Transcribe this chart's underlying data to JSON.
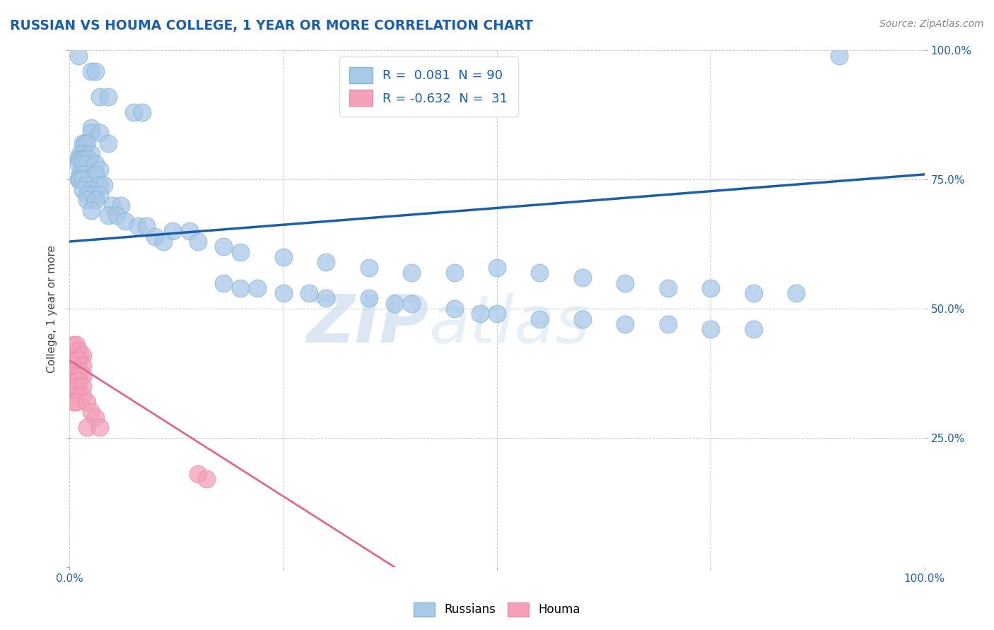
{
  "title": "RUSSIAN VS HOUMA COLLEGE, 1 YEAR OR MORE CORRELATION CHART",
  "source_text": "Source: ZipAtlas.com",
  "ylabel": "College, 1 year or more",
  "legend_labels": [
    "Russians",
    "Houma"
  ],
  "blue_R": 0.081,
  "blue_N": 90,
  "pink_R": -0.632,
  "pink_N": 31,
  "blue_color": "#a8c8e8",
  "blue_line_color": "#1a5fa8",
  "pink_color": "#f4a0b8",
  "pink_line_color": "#e06888",
  "watermark_zip": "ZIP",
  "watermark_atlas": "atlas",
  "background_color": "#ffffff",
  "grid_color": "#bbbbbb",
  "blue_dots": [
    [
      1.0,
      99
    ],
    [
      2.5,
      96
    ],
    [
      3.0,
      96
    ],
    [
      3.5,
      91
    ],
    [
      4.5,
      91
    ],
    [
      7.5,
      88
    ],
    [
      8.5,
      88
    ],
    [
      2.5,
      85
    ],
    [
      2.5,
      84
    ],
    [
      3.5,
      84
    ],
    [
      4.5,
      82
    ],
    [
      1.5,
      82
    ],
    [
      1.8,
      82
    ],
    [
      2.0,
      82
    ],
    [
      1.2,
      80
    ],
    [
      1.5,
      80
    ],
    [
      2.5,
      80
    ],
    [
      1.0,
      79
    ],
    [
      1.2,
      79
    ],
    [
      1.5,
      79
    ],
    [
      1.8,
      79
    ],
    [
      2.2,
      79
    ],
    [
      1.0,
      78
    ],
    [
      1.5,
      78
    ],
    [
      2.0,
      78
    ],
    [
      3.0,
      78
    ],
    [
      3.5,
      77
    ],
    [
      1.2,
      76
    ],
    [
      1.8,
      76
    ],
    [
      3.0,
      76
    ],
    [
      1.0,
      75
    ],
    [
      1.2,
      75
    ],
    [
      1.5,
      75
    ],
    [
      2.0,
      74
    ],
    [
      3.5,
      74
    ],
    [
      4.0,
      74
    ],
    [
      1.5,
      73
    ],
    [
      2.5,
      73
    ],
    [
      2.0,
      72
    ],
    [
      2.8,
      72
    ],
    [
      3.5,
      72
    ],
    [
      2.0,
      71
    ],
    [
      3.0,
      71
    ],
    [
      5.0,
      70
    ],
    [
      6.0,
      70
    ],
    [
      2.5,
      69
    ],
    [
      4.5,
      68
    ],
    [
      5.5,
      68
    ],
    [
      6.5,
      67
    ],
    [
      8.0,
      66
    ],
    [
      9.0,
      66
    ],
    [
      12.0,
      65
    ],
    [
      14.0,
      65
    ],
    [
      10.0,
      64
    ],
    [
      11.0,
      63
    ],
    [
      15.0,
      63
    ],
    [
      18.0,
      62
    ],
    [
      20.0,
      61
    ],
    [
      25.0,
      60
    ],
    [
      30.0,
      59
    ],
    [
      35.0,
      58
    ],
    [
      40.0,
      57
    ],
    [
      45.0,
      57
    ],
    [
      50.0,
      58
    ],
    [
      55.0,
      57
    ],
    [
      60.0,
      56
    ],
    [
      65.0,
      55
    ],
    [
      70.0,
      54
    ],
    [
      75.0,
      54
    ],
    [
      80.0,
      53
    ],
    [
      85.0,
      53
    ],
    [
      18.0,
      55
    ],
    [
      20.0,
      54
    ],
    [
      22.0,
      54
    ],
    [
      25.0,
      53
    ],
    [
      28.0,
      53
    ],
    [
      30.0,
      52
    ],
    [
      35.0,
      52
    ],
    [
      38.0,
      51
    ],
    [
      40.0,
      51
    ],
    [
      45.0,
      50
    ],
    [
      48.0,
      49
    ],
    [
      50.0,
      49
    ],
    [
      55.0,
      48
    ],
    [
      60.0,
      48
    ],
    [
      65.0,
      47
    ],
    [
      70.0,
      47
    ],
    [
      75.0,
      46
    ],
    [
      80.0,
      46
    ],
    [
      90.0,
      99
    ]
  ],
  "pink_dots": [
    [
      0.5,
      43
    ],
    [
      0.8,
      43
    ],
    [
      1.0,
      42
    ],
    [
      1.2,
      41
    ],
    [
      1.5,
      41
    ],
    [
      0.5,
      40
    ],
    [
      0.8,
      40
    ],
    [
      1.0,
      40
    ],
    [
      1.5,
      39
    ],
    [
      0.5,
      38
    ],
    [
      0.8,
      38
    ],
    [
      1.2,
      38
    ],
    [
      0.5,
      37
    ],
    [
      1.0,
      37
    ],
    [
      1.5,
      37
    ],
    [
      0.8,
      36
    ],
    [
      1.0,
      36
    ],
    [
      0.5,
      35
    ],
    [
      1.0,
      35
    ],
    [
      1.5,
      35
    ],
    [
      1.0,
      33
    ],
    [
      1.5,
      33
    ],
    [
      0.5,
      32
    ],
    [
      0.8,
      32
    ],
    [
      2.0,
      32
    ],
    [
      2.5,
      30
    ],
    [
      3.0,
      29
    ],
    [
      2.0,
      27
    ],
    [
      3.5,
      27
    ],
    [
      15.0,
      18
    ],
    [
      16.0,
      17
    ]
  ],
  "xlim": [
    0,
    100
  ],
  "ylim": [
    0,
    100
  ],
  "blue_line_x": [
    0,
    100
  ],
  "blue_line_y": [
    63,
    76
  ],
  "pink_line_x": [
    0,
    38
  ],
  "pink_line_y": [
    40,
    0
  ]
}
